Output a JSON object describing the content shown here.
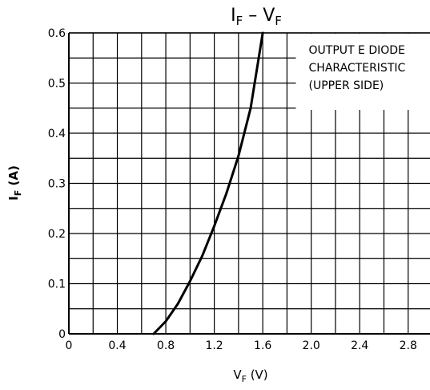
{
  "chart_data": {
    "type": "line",
    "title": {
      "left_var": "I",
      "left_sub": "F",
      "dash": "–",
      "right_var": "V",
      "right_sub": "F"
    },
    "xlabel": {
      "var": "V",
      "sub": "F",
      "unit": "(V)"
    },
    "ylabel": {
      "var": "I",
      "sub": "F",
      "unit": "(A)"
    },
    "xlim": [
      0,
      3.0
    ],
    "ylim": [
      0,
      0.6
    ],
    "grid": true,
    "x_major_ticks": [
      0,
      0.4,
      0.8,
      1.2,
      1.6,
      2.0,
      2.4,
      2.8
    ],
    "x_tick_labels": [
      "0",
      "0.4",
      "0.8",
      "1.2",
      "1.6",
      "2.0",
      "2.4",
      "2.8"
    ],
    "x_minor_ticks": [
      0.2,
      0.6,
      1.0,
      1.4,
      1.8,
      2.2,
      2.6,
      3.0
    ],
    "y_major_ticks": [
      0,
      0.1,
      0.2,
      0.3,
      0.4,
      0.5,
      0.6
    ],
    "y_tick_labels": [
      "0",
      "0.1",
      "0.2",
      "0.3",
      "0.4",
      "0.5",
      "0.6"
    ],
    "y_minor_ticks": [
      0.05,
      0.15,
      0.25,
      0.35,
      0.45,
      0.55
    ],
    "annotation": {
      "lines": [
        "OUTPUT E DIODE",
        "CHARACTERISTIC",
        "(UPPER SIDE)"
      ],
      "position": "top-right"
    },
    "series": [
      {
        "x": [
          0.7,
          0.8,
          0.9,
          1.0,
          1.1,
          1.2,
          1.3,
          1.4,
          1.5,
          1.6
        ],
        "y": [
          0.0,
          0.025,
          0.06,
          0.105,
          0.155,
          0.215,
          0.28,
          0.355,
          0.45,
          0.6
        ],
        "color": "#000000"
      }
    ]
  }
}
